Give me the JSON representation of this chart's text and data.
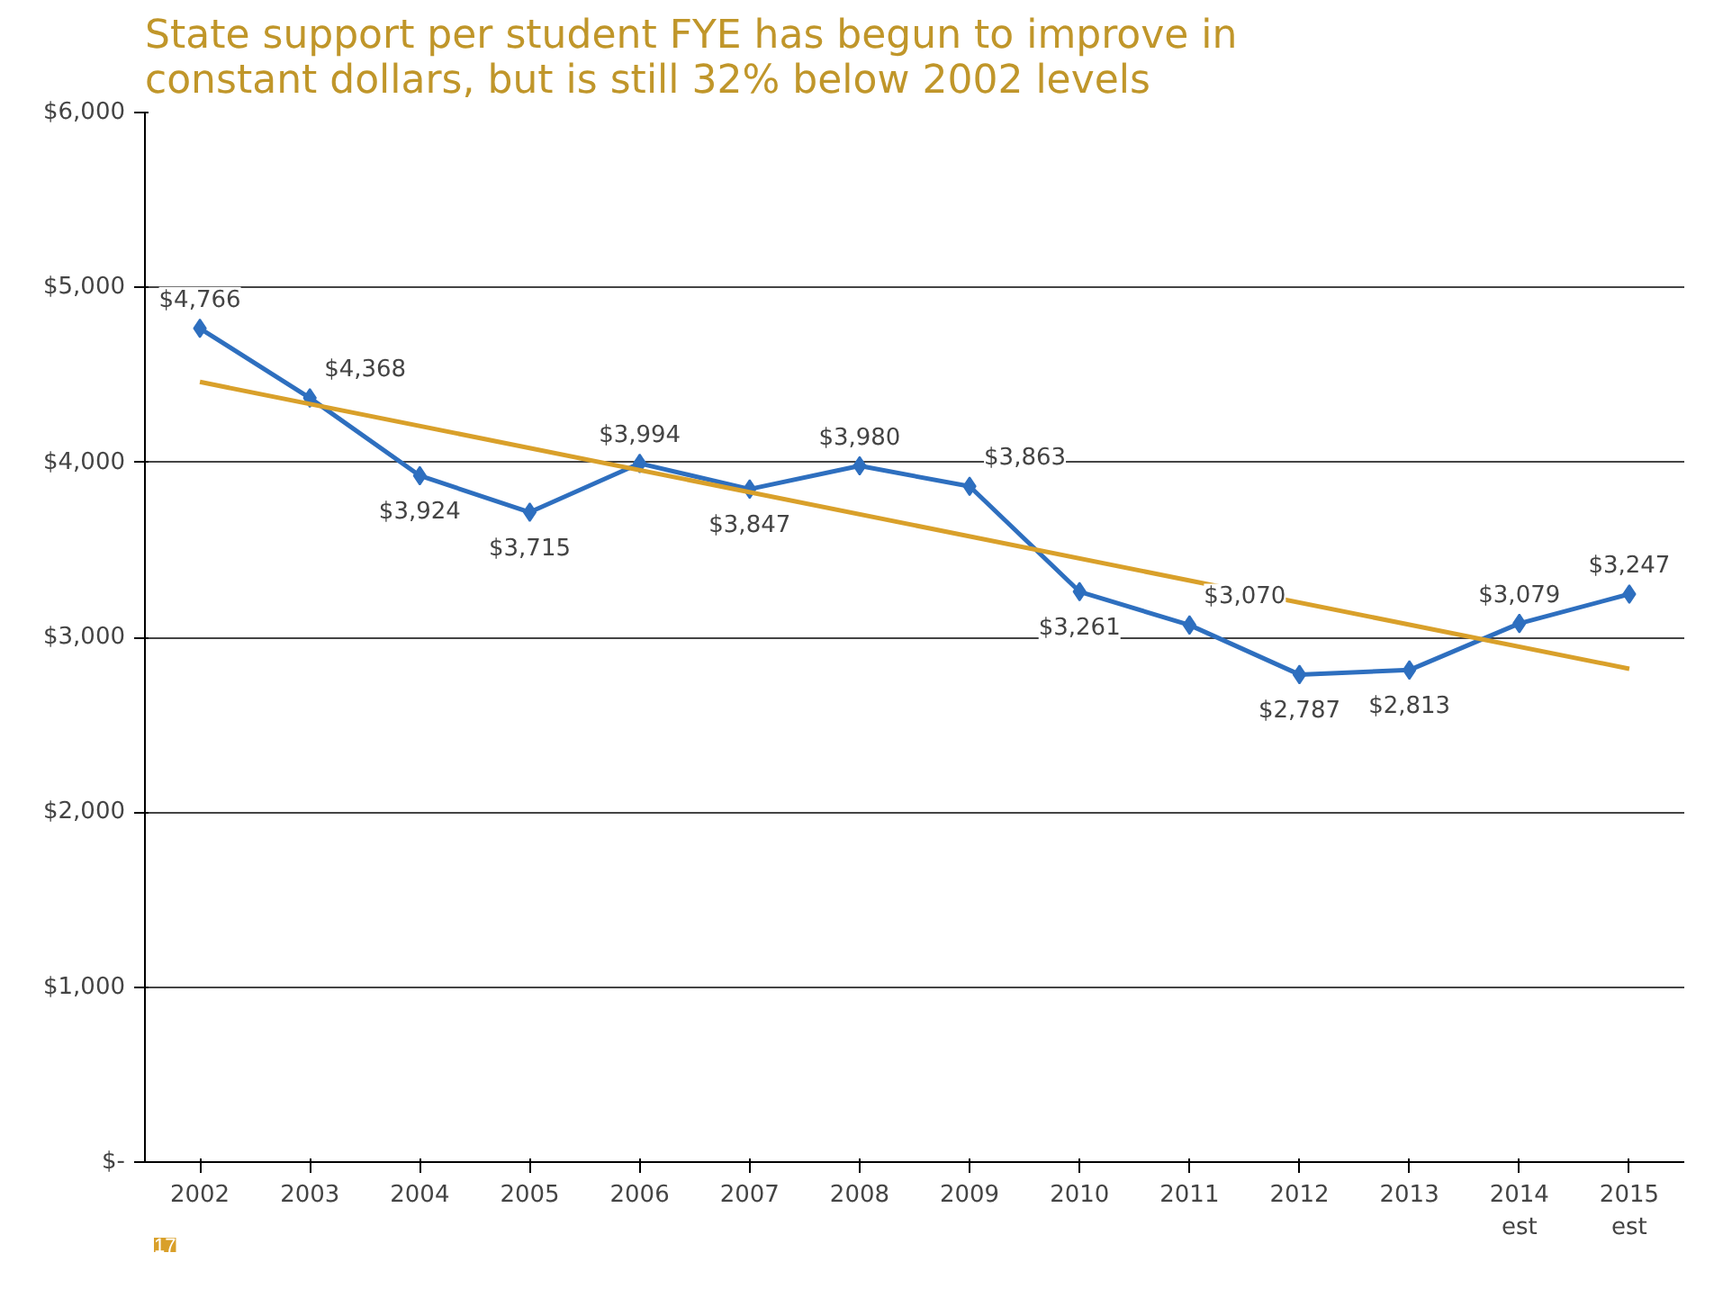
{
  "chart_data": {
    "type": "line",
    "title": "State support per student FYE has begun to improve in constant dollars, but is still 32% below 2002 levels",
    "x": [
      2002,
      2003,
      2004,
      2005,
      2006,
      2007,
      2008,
      2009,
      2010,
      2011,
      2012,
      2013,
      2014,
      2015
    ],
    "xlim": [
      2001.5,
      2015.5
    ],
    "xticks": [
      2002,
      2003,
      2004,
      2005,
      2006,
      2007,
      2008,
      2009,
      2010,
      2011,
      2012,
      2013,
      {
        "value": 2014,
        "label": "2014\nest"
      },
      {
        "value": 2015,
        "label": "2015\nest"
      }
    ],
    "ylim": [
      0,
      6000
    ],
    "yticks": [
      {
        "value": 0,
        "label": "$-"
      },
      {
        "value": 1000,
        "label": "$1,000"
      },
      {
        "value": 2000,
        "label": "$2,000"
      },
      {
        "value": 3000,
        "label": "$3,000"
      },
      {
        "value": 4000,
        "label": "$4,000"
      },
      {
        "value": 5000,
        "label": "$5,000"
      },
      {
        "value": 6000,
        "label": "$6,000"
      }
    ],
    "series": [
      {
        "color": "#2e6fbf",
        "marker": "diamond",
        "values": [
          4766,
          4368,
          3924,
          3715,
          3994,
          3847,
          3980,
          3863,
          3261,
          3070,
          2787,
          2813,
          3079,
          3247
        ],
        "value_labels": [
          "$4,766",
          "$4,368",
          "$3,924",
          "$3,715",
          "$3,994",
          "$3,847",
          "$3,980",
          "$3,863",
          "$3,261",
          "$3,070",
          "$2,787",
          "$2,813",
          "$3,079",
          "$3,247"
        ]
      },
      {
        "type": "line",
        "color": "#d9a02a",
        "marker": "none",
        "x": [
          2002,
          2015
        ],
        "values": [
          4460,
          2820
        ]
      }
    ],
    "grid": "y",
    "annotations": [
      "17"
    ]
  }
}
